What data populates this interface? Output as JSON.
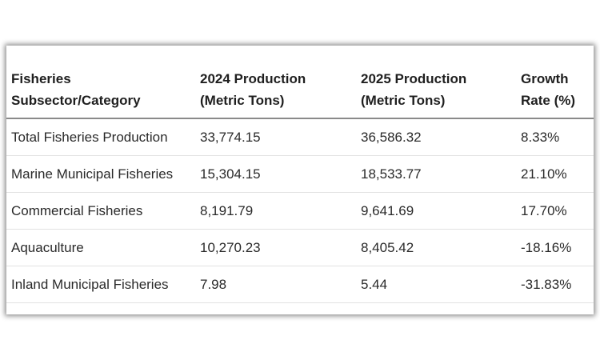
{
  "table": {
    "header": [
      "Fisheries Subsector/Category",
      "2024 Production (Metric Tons)",
      "2025 Production (Metric Tons)",
      "Growth Rate (%)"
    ],
    "rows": [
      [
        "Total Fisheries Production",
        "33,774.15",
        "36,586.32",
        "8.33%"
      ],
      [
        "Marine Municipal Fisheries",
        "15,304.15",
        "18,533.77",
        "21.10%"
      ],
      [
        "Commercial Fisheries",
        "8,191.79",
        "9,641.69",
        "17.70%"
      ],
      [
        "Aquaculture",
        "10,270.23",
        "8,405.42",
        "-18.16%"
      ],
      [
        "Inland Municipal Fisheries",
        "7.98",
        "5.44",
        "-31.83%"
      ]
    ]
  }
}
